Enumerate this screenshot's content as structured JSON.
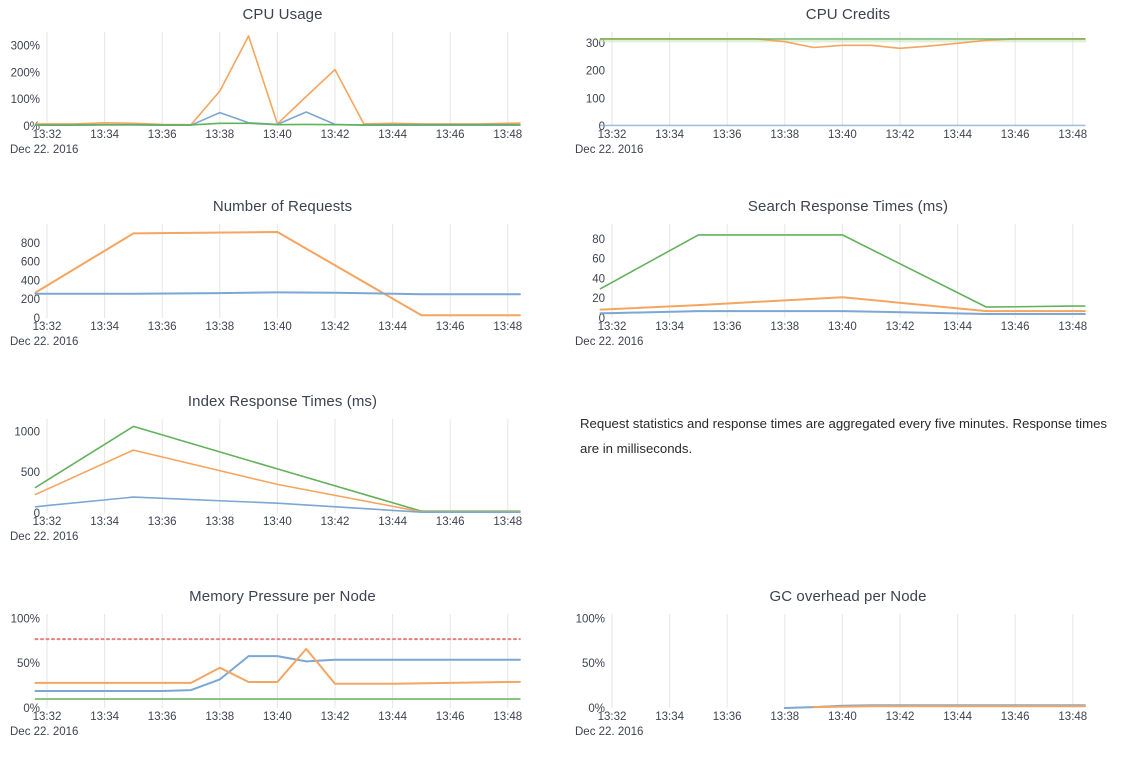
{
  "page": {
    "background": "#ffffff"
  },
  "colors": {
    "blue": "#7ca7d2",
    "orange": "#f5a55f",
    "green": "#63b15c",
    "green_soft": "#c3e3b4",
    "red": "#ea7e7e",
    "grid": "#e6e6e6",
    "title": "#3e4151",
    "axis": "#3f4350"
  },
  "note": {
    "text": "Request statistics and response times are aggregated every five minutes. Response times are in milliseconds."
  },
  "chart_data": [
    {
      "type": "line",
      "title": "CPU Usage",
      "xlabel": "",
      "ylabel": "",
      "x_range": [
        "13:32",
        "13:48"
      ],
      "x_tick_labels": [
        "13:32",
        "13:34",
        "13:36",
        "13:38",
        "13:40",
        "13:42",
        "13:44",
        "13:46",
        "13:48"
      ],
      "x_date_label": "Dec 22. 2016",
      "y_ticks": [
        {
          "v": 0,
          "label": "0%"
        },
        {
          "v": 100,
          "label": "100%"
        },
        {
          "v": 200,
          "label": "200%"
        },
        {
          "v": 300,
          "label": "300%"
        }
      ],
      "ylim": [
        0,
        350
      ],
      "grid": true,
      "legend": "none",
      "series": [
        {
          "name": "orange",
          "color_key": "orange",
          "values": [
            [
              0,
              8
            ],
            [
              1,
              8
            ],
            [
              2,
              12
            ],
            [
              3,
              10
            ],
            [
              4,
              6
            ],
            [
              5,
              5
            ],
            [
              6,
              130
            ],
            [
              7,
              335
            ],
            [
              8,
              8
            ],
            [
              9,
              110
            ],
            [
              10,
              210
            ],
            [
              11,
              8
            ],
            [
              12,
              10
            ],
            [
              13,
              8
            ],
            [
              14,
              8
            ],
            [
              15,
              8
            ],
            [
              16,
              10
            ]
          ]
        },
        {
          "name": "blue",
          "color_key": "blue",
          "values": [
            [
              0,
              3
            ],
            [
              1,
              3
            ],
            [
              2,
              4
            ],
            [
              3,
              4
            ],
            [
              4,
              3
            ],
            [
              5,
              3
            ],
            [
              6,
              50
            ],
            [
              7,
              12
            ],
            [
              8,
              6
            ],
            [
              9,
              52
            ],
            [
              10,
              6
            ],
            [
              11,
              3
            ],
            [
              12,
              3
            ],
            [
              13,
              3
            ],
            [
              14,
              3
            ],
            [
              15,
              3
            ],
            [
              16,
              3
            ]
          ]
        },
        {
          "name": "green",
          "color_key": "green",
          "values": [
            [
              0,
              4
            ],
            [
              1,
              4
            ],
            [
              2,
              5
            ],
            [
              3,
              5
            ],
            [
              4,
              4
            ],
            [
              5,
              4
            ],
            [
              6,
              10
            ],
            [
              7,
              10
            ],
            [
              8,
              5
            ],
            [
              9,
              6
            ],
            [
              10,
              5
            ],
            [
              11,
              4
            ],
            [
              12,
              5
            ],
            [
              13,
              5
            ],
            [
              14,
              5
            ],
            [
              15,
              5
            ],
            [
              16,
              5
            ]
          ]
        }
      ]
    },
    {
      "type": "line",
      "title": "CPU Credits",
      "xlabel": "",
      "ylabel": "",
      "x_range": [
        "13:32",
        "13:48"
      ],
      "x_tick_labels": [
        "13:32",
        "13:34",
        "13:36",
        "13:38",
        "13:40",
        "13:42",
        "13:44",
        "13:46",
        "13:48"
      ],
      "x_date_label": "Dec 22. 2016",
      "y_ticks": [
        {
          "v": 0,
          "label": "0"
        },
        {
          "v": 100,
          "label": "100"
        },
        {
          "v": 200,
          "label": "200"
        },
        {
          "v": 300,
          "label": "300"
        }
      ],
      "ylim": [
        0,
        340
      ],
      "grid": true,
      "legend": "none",
      "series": [
        {
          "name": "green-band",
          "color_key": "green_soft",
          "width": 3.2,
          "opacity": 0.55,
          "values": [
            [
              0,
              308
            ],
            [
              16,
              308
            ]
          ]
        },
        {
          "name": "orange",
          "color_key": "orange",
          "values": [
            [
              0,
              315
            ],
            [
              5,
              315
            ],
            [
              6,
              305
            ],
            [
              7,
              284
            ],
            [
              8,
              292
            ],
            [
              9,
              292
            ],
            [
              10,
              281
            ],
            [
              11,
              289
            ],
            [
              12,
              299
            ],
            [
              13,
              310
            ],
            [
              14,
              315
            ],
            [
              16,
              315
            ]
          ]
        },
        {
          "name": "green",
          "color_key": "green",
          "opacity": 0.8,
          "values": [
            [
              0,
              315
            ],
            [
              16,
              315
            ]
          ]
        },
        {
          "name": "blue",
          "color_key": "blue",
          "opacity": 0.7,
          "values": [
            [
              0,
              2
            ],
            [
              16,
              2
            ]
          ]
        }
      ]
    },
    {
      "type": "line",
      "title": "Number of Requests",
      "xlabel": "",
      "ylabel": "",
      "x_range": [
        "13:32",
        "13:48"
      ],
      "x_tick_labels": [
        "13:32",
        "13:34",
        "13:36",
        "13:38",
        "13:40",
        "13:42",
        "13:44",
        "13:46",
        "13:48"
      ],
      "x_date_label": "Dec 22. 2016",
      "y_ticks": [
        {
          "v": 0,
          "label": "0"
        },
        {
          "v": 200,
          "label": "200"
        },
        {
          "v": 400,
          "label": "400"
        },
        {
          "v": 600,
          "label": "600"
        },
        {
          "v": 800,
          "label": "800"
        }
      ],
      "ylim": [
        0,
        1000
      ],
      "grid": true,
      "legend": "none",
      "series": [
        {
          "name": "orange",
          "color_key": "orange",
          "width": 2,
          "values": [
            [
              0,
              345
            ],
            [
              3,
              900
            ],
            [
              8,
              915
            ],
            [
              13,
              30
            ],
            [
              16,
              30
            ]
          ]
        },
        {
          "name": "blue",
          "color_key": "blue",
          "width": 2,
          "values": [
            [
              0,
              258
            ],
            [
              3,
              258
            ],
            [
              6,
              265
            ],
            [
              8,
              272
            ],
            [
              10,
              268
            ],
            [
              13,
              253
            ],
            [
              16,
              253
            ]
          ]
        }
      ]
    },
    {
      "type": "line",
      "title": "Search Response Times (ms)",
      "xlabel": "",
      "ylabel": "",
      "x_range": [
        "13:32",
        "13:48"
      ],
      "x_tick_labels": [
        "13:32",
        "13:34",
        "13:36",
        "13:38",
        "13:40",
        "13:42",
        "13:44",
        "13:46",
        "13:48"
      ],
      "x_date_label": "Dec 22. 2016",
      "y_ticks": [
        {
          "v": 0,
          "label": "0"
        },
        {
          "v": 20,
          "label": "20"
        },
        {
          "v": 40,
          "label": "40"
        },
        {
          "v": 60,
          "label": "60"
        },
        {
          "v": 80,
          "label": "80"
        }
      ],
      "ylim": [
        0,
        95
      ],
      "grid": true,
      "legend": "none",
      "series": [
        {
          "name": "green",
          "color_key": "green",
          "values": [
            [
              0,
              36
            ],
            [
              3,
              84
            ],
            [
              8,
              84
            ],
            [
              13,
              11
            ],
            [
              16,
              12
            ]
          ]
        },
        {
          "name": "orange",
          "color_key": "orange",
          "width": 2,
          "values": [
            [
              0,
              9
            ],
            [
              3,
              13
            ],
            [
              8,
              21
            ],
            [
              13,
              7
            ],
            [
              16,
              7
            ]
          ]
        },
        {
          "name": "blue",
          "color_key": "blue",
          "width": 2,
          "values": [
            [
              0,
              5
            ],
            [
              3,
              7
            ],
            [
              8,
              7
            ],
            [
              13,
              4
            ],
            [
              16,
              4
            ]
          ]
        }
      ]
    },
    {
      "type": "line",
      "title": "Index Response Times (ms)",
      "xlabel": "",
      "ylabel": "",
      "x_range": [
        "13:32",
        "13:48"
      ],
      "x_tick_labels": [
        "13:32",
        "13:34",
        "13:36",
        "13:38",
        "13:40",
        "13:42",
        "13:44",
        "13:46",
        "13:48"
      ],
      "x_date_label": "Dec 22. 2016",
      "y_ticks": [
        {
          "v": 0,
          "label": "0"
        },
        {
          "v": 500,
          "label": "500"
        },
        {
          "v": 1000,
          "label": "1000"
        }
      ],
      "ylim": [
        0,
        1150
      ],
      "grid": true,
      "legend": "none",
      "series": [
        {
          "name": "green",
          "color_key": "green",
          "values": [
            [
              0,
              400
            ],
            [
              3,
              1060
            ],
            [
              8,
              540
            ],
            [
              13,
              22
            ],
            [
              16,
              22
            ]
          ]
        },
        {
          "name": "orange",
          "color_key": "orange",
          "values": [
            [
              0,
              290
            ],
            [
              3,
              770
            ],
            [
              8,
              350
            ],
            [
              13,
              15
            ],
            [
              16,
              15
            ]
          ]
        },
        {
          "name": "blue",
          "color_key": "blue",
          "values": [
            [
              0,
              90
            ],
            [
              3,
              195
            ],
            [
              8,
              120
            ],
            [
              13,
              10
            ],
            [
              16,
              10
            ]
          ]
        }
      ]
    },
    {
      "type": "line",
      "title": "Memory Pressure per Node",
      "xlabel": "",
      "ylabel": "",
      "x_range": [
        "13:32",
        "13:48"
      ],
      "x_tick_labels": [
        "13:32",
        "13:34",
        "13:36",
        "13:38",
        "13:40",
        "13:42",
        "13:44",
        "13:46",
        "13:48"
      ],
      "x_date_label": "Dec 22. 2016",
      "y_ticks": [
        {
          "v": 0,
          "label": "0%"
        },
        {
          "v": 50,
          "label": "50%"
        },
        {
          "v": 100,
          "label": "100%"
        }
      ],
      "ylim": [
        0,
        105
      ],
      "grid": true,
      "legend": "none",
      "series": [
        {
          "name": "threshold",
          "color_key": "red",
          "dash": true,
          "width": 2,
          "values": [
            [
              0,
              77
            ],
            [
              16,
              77
            ]
          ]
        },
        {
          "name": "blue",
          "color_key": "blue",
          "width": 2,
          "values": [
            [
              0,
              19
            ],
            [
              4,
              19
            ],
            [
              5,
              20
            ],
            [
              6,
              32
            ],
            [
              7,
              58
            ],
            [
              8,
              58
            ],
            [
              9,
              52
            ],
            [
              10,
              54
            ],
            [
              16,
              54
            ]
          ]
        },
        {
          "name": "orange",
          "color_key": "orange",
          "width": 2,
          "values": [
            [
              0,
              28
            ],
            [
              5,
              28
            ],
            [
              6,
              45
            ],
            [
              7,
              29
            ],
            [
              8,
              29
            ],
            [
              9,
              66
            ],
            [
              10,
              27
            ],
            [
              12,
              27
            ],
            [
              14,
              28
            ],
            [
              16,
              29
            ]
          ]
        },
        {
          "name": "green",
          "color_key": "green",
          "values": [
            [
              0,
              10
            ],
            [
              16,
              10
            ]
          ]
        }
      ]
    },
    {
      "type": "line",
      "title": "GC overhead per Node",
      "xlabel": "",
      "ylabel": "",
      "x_range": [
        "13:32",
        "13:48"
      ],
      "x_tick_labels": [
        "13:32",
        "13:34",
        "13:36",
        "13:38",
        "13:40",
        "13:42",
        "13:44",
        "13:46",
        "13:48"
      ],
      "x_date_label": "Dec 22. 2016",
      "y_ticks": [
        {
          "v": 0,
          "label": "0%"
        },
        {
          "v": 50,
          "label": "50%"
        },
        {
          "v": 100,
          "label": "100%"
        }
      ],
      "ylim": [
        0,
        105
      ],
      "grid": true,
      "legend": "none",
      "series": [
        {
          "name": "blue",
          "color_key": "blue",
          "width": 2,
          "values": [
            [
              6,
              0
            ],
            [
              7,
              1
            ],
            [
              8,
              2.5
            ],
            [
              9,
              3
            ],
            [
              16,
              3
            ]
          ]
        },
        {
          "name": "orange",
          "color_key": "orange",
          "width": 2,
          "values": [
            [
              7,
              1
            ],
            [
              9,
              2
            ],
            [
              16,
              2
            ]
          ]
        }
      ]
    }
  ]
}
